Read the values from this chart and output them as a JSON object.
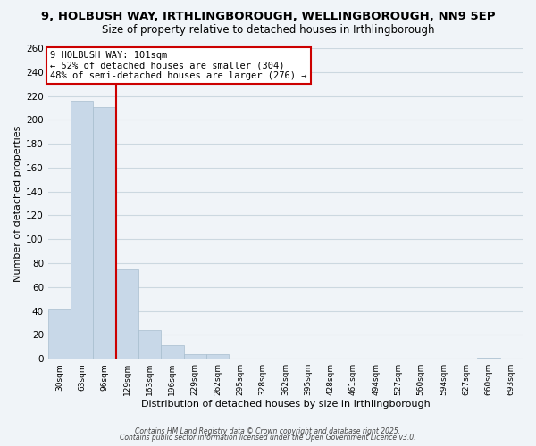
{
  "title1": "9, HOLBUSH WAY, IRTHLINGBOROUGH, WELLINGBOROUGH, NN9 5EP",
  "title2": "Size of property relative to detached houses in Irthlingborough",
  "xlabel": "Distribution of detached houses by size in Irthlingborough",
  "ylabel": "Number of detached properties",
  "bar_values": [
    42,
    216,
    211,
    75,
    24,
    11,
    4,
    4,
    0,
    0,
    0,
    0,
    0,
    0,
    0,
    0,
    0,
    0,
    0,
    1,
    0
  ],
  "bin_labels": [
    "30sqm",
    "63sqm",
    "96sqm",
    "129sqm",
    "163sqm",
    "196sqm",
    "229sqm",
    "262sqm",
    "295sqm",
    "328sqm",
    "362sqm",
    "395sqm",
    "428sqm",
    "461sqm",
    "494sqm",
    "527sqm",
    "560sqm",
    "594sqm",
    "627sqm",
    "660sqm",
    "693sqm"
  ],
  "bar_color": "#c8d8e8",
  "bar_edge_color": "#a8bece",
  "property_line_x": 2.5,
  "property_line_color": "#cc0000",
  "annotation_title": "9 HOLBUSH WAY: 101sqm",
  "annotation_line1": "← 52% of detached houses are smaller (304)",
  "annotation_line2": "48% of semi-detached houses are larger (276) →",
  "annotation_box_color": "#ffffff",
  "annotation_box_edge": "#cc0000",
  "ylim": [
    0,
    260
  ],
  "yticks": [
    0,
    20,
    40,
    60,
    80,
    100,
    120,
    140,
    160,
    180,
    200,
    220,
    240,
    260
  ],
  "grid_color": "#ccd8e0",
  "footnote1": "Contains HM Land Registry data © Crown copyright and database right 2025.",
  "footnote2": "Contains public sector information licensed under the Open Government Licence v3.0.",
  "bg_color": "#f0f4f8"
}
